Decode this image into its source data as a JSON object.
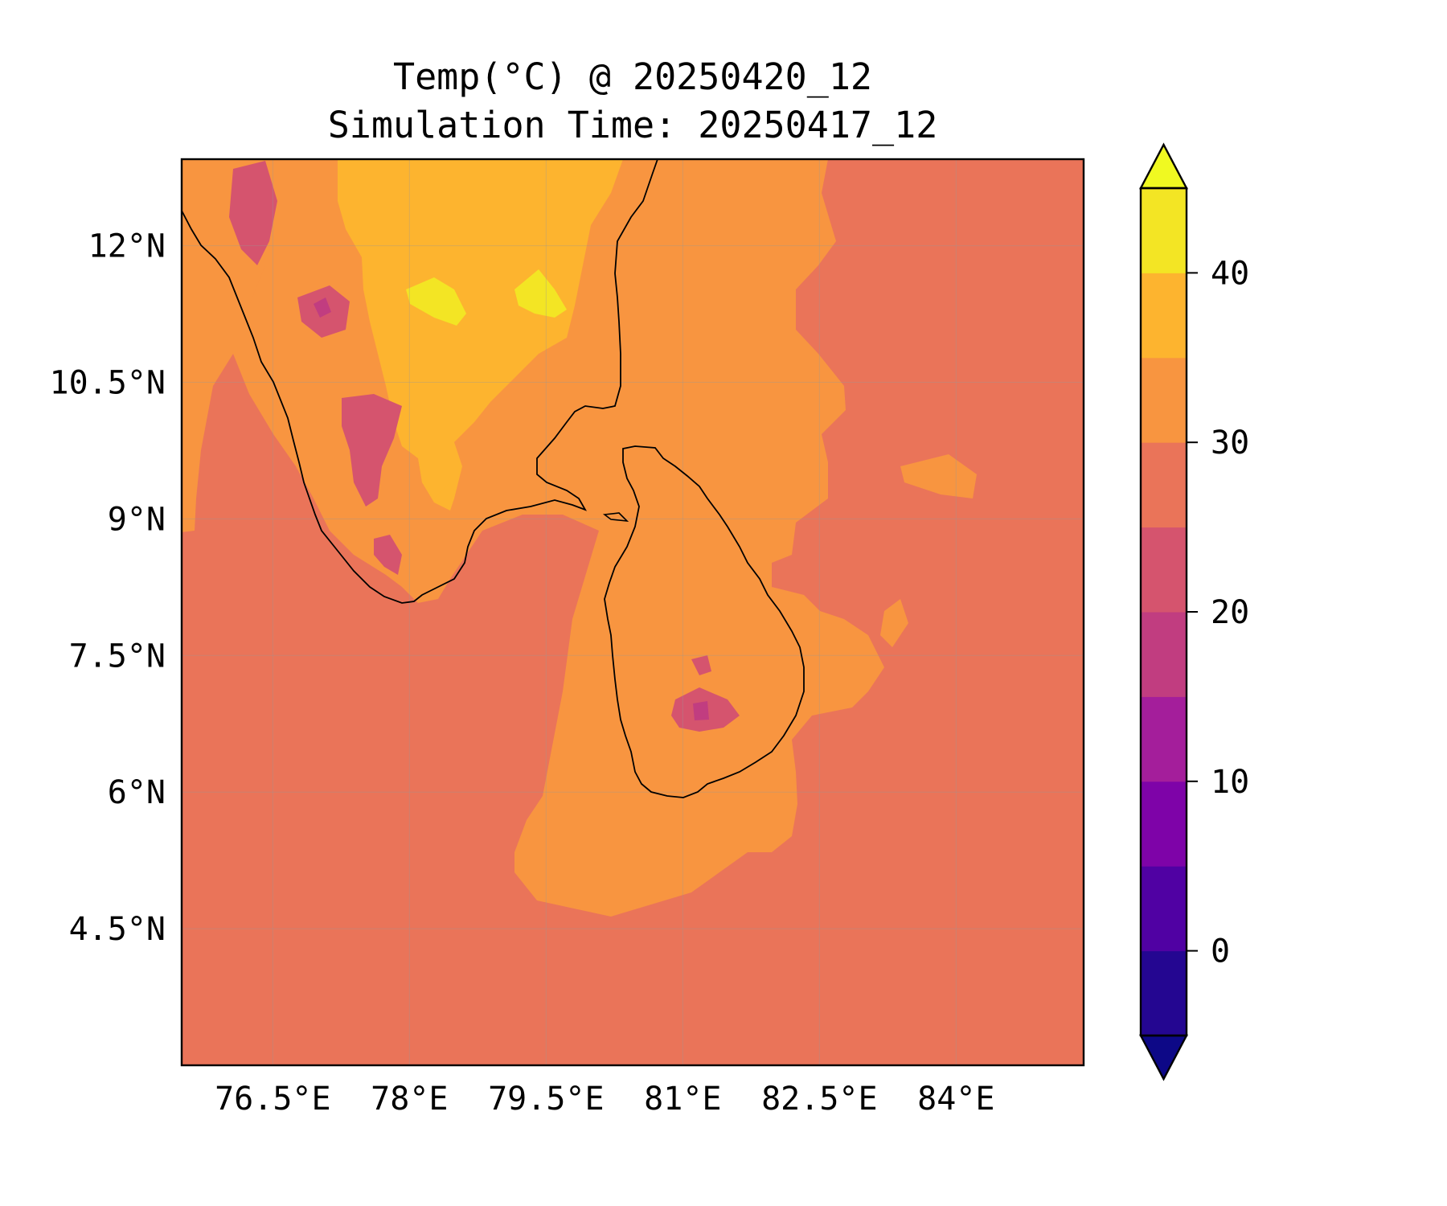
{
  "title": {
    "line1": "Temp(°C) @ 20250420_12",
    "line2": "Simulation Time: 20250417_12"
  },
  "map": {
    "extent": {
      "lon": [
        75.5,
        85.4
      ],
      "lat": [
        3.0,
        12.95
      ]
    },
    "lon_ticks": [
      {
        "value": 76.5,
        "label": "76.5°E"
      },
      {
        "value": 78.0,
        "label": "78°E"
      },
      {
        "value": 79.5,
        "label": "79.5°E"
      },
      {
        "value": 81.0,
        "label": "81°E"
      },
      {
        "value": 82.5,
        "label": "82.5°E"
      },
      {
        "value": 84.0,
        "label": "84°E"
      }
    ],
    "lat_ticks": [
      {
        "value": 12.0,
        "label": "12°N"
      },
      {
        "value": 10.5,
        "label": "10.5°N"
      },
      {
        "value": 9.0,
        "label": "9°N"
      },
      {
        "value": 7.5,
        "label": "7.5°N"
      },
      {
        "value": 6.0,
        "label": "6°N"
      },
      {
        "value": 4.5,
        "label": "4.5°N"
      }
    ],
    "gridlines": true,
    "background_level_color": "#ea7459"
  },
  "colorbar": {
    "label": "",
    "range": [
      -5,
      45
    ],
    "extend": "both",
    "under_color": "#0d0887",
    "over_color": "#f0f921",
    "levels": [
      {
        "from": -5,
        "to": 0,
        "color": "#240691"
      },
      {
        "from": 0,
        "to": 5,
        "color": "#5001a3"
      },
      {
        "from": 5,
        "to": 10,
        "color": "#7e03a8"
      },
      {
        "from": 10,
        "to": 15,
        "color": "#a41e9b"
      },
      {
        "from": 15,
        "to": 20,
        "color": "#c13d80"
      },
      {
        "from": 20,
        "to": 25,
        "color": "#d5546e"
      },
      {
        "from": 25,
        "to": 30,
        "color": "#ea7459"
      },
      {
        "from": 30,
        "to": 35,
        "color": "#f89540"
      },
      {
        "from": 35,
        "to": 40,
        "color": "#fdb42f"
      },
      {
        "from": 40,
        "to": 45,
        "color": "#f3e524"
      }
    ],
    "ticks": [
      {
        "value": 0,
        "label": "0"
      },
      {
        "value": 10,
        "label": "10"
      },
      {
        "value": 20,
        "label": "20"
      },
      {
        "value": 30,
        "label": "30"
      },
      {
        "value": 40,
        "label": "40"
      }
    ]
  }
}
